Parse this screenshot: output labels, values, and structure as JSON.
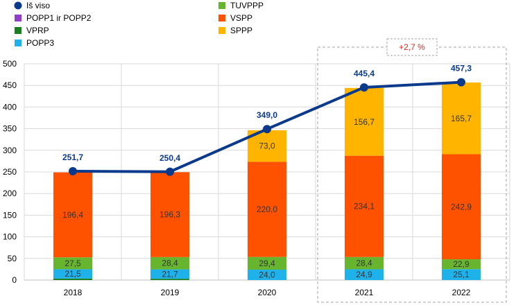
{
  "chart_data": {
    "type": "bar",
    "stacked": true,
    "categories": [
      "2018",
      "2019",
      "2020",
      "2021",
      "2022"
    ],
    "ylim": [
      0,
      500
    ],
    "yticks": [
      0,
      50,
      100,
      150,
      200,
      250,
      300,
      350,
      400,
      450,
      500
    ],
    "grid": true,
    "legend_position": "top",
    "series": [
      {
        "name": "POPP1 ir POPP2",
        "color": "#8f3fc8",
        "values": [
          0,
          0,
          0,
          0,
          0
        ],
        "labels": [
          "",
          "",
          "",
          "",
          ""
        ]
      },
      {
        "name": "VPRP",
        "color": "#1a7f1e",
        "values": [
          3.5,
          3.0,
          0,
          0,
          0
        ],
        "labels": [
          "",
          "",
          "",
          "",
          ""
        ]
      },
      {
        "name": "POPP3",
        "color": "#1fb1ea",
        "values": [
          21.5,
          21.7,
          24.0,
          24.9,
          25.1
        ],
        "labels": [
          "21,5",
          "21,7",
          "24,0",
          "24,9",
          "25,1"
        ]
      },
      {
        "name": "TUVPPP",
        "color": "#67b52e",
        "values": [
          27.5,
          28.4,
          29.4,
          28.4,
          22.9
        ],
        "labels": [
          "27,5",
          "28,4",
          "29,4",
          "28,4",
          "22,9"
        ]
      },
      {
        "name": "VSPP",
        "color": "#ff5200",
        "values": [
          196.4,
          196.3,
          220.0,
          234.1,
          242.9
        ],
        "labels": [
          "196,4",
          "196,3",
          "220,0",
          "234,1",
          "242,9"
        ]
      },
      {
        "name": "SPPP",
        "color": "#ffb400",
        "values": [
          0,
          0,
          73.0,
          156.7,
          165.7
        ],
        "labels": [
          "",
          "",
          "73,0",
          "156,7",
          "165,7"
        ]
      }
    ],
    "line_series": {
      "name": "Iš viso",
      "color": "#0b3a8c",
      "values": [
        251.7,
        250.4,
        349.0,
        445.4,
        457.3
      ],
      "labels": [
        "251,7",
        "250,4",
        "349,0",
        "445,4",
        "457,3"
      ]
    },
    "annotation": {
      "text": "+2,7 %",
      "color": "#d6281e",
      "categories": [
        "2021",
        "2022"
      ]
    },
    "legend": {
      "left": [
        {
          "name": "Iš viso",
          "marker": "circle",
          "color": "#0b3a8c"
        },
        {
          "name": "POPP1 ir POPP2",
          "marker": "square",
          "color": "#8f3fc8"
        },
        {
          "name": "VPRP",
          "marker": "square",
          "color": "#1a7f1e"
        },
        {
          "name": "POPP3",
          "marker": "square",
          "color": "#1fb1ea"
        }
      ],
      "right": [
        {
          "name": "TUVPPP",
          "marker": "square",
          "color": "#67b52e"
        },
        {
          "name": "VSPP",
          "marker": "square",
          "color": "#ff5200"
        },
        {
          "name": "SPPP",
          "marker": "square",
          "color": "#ffb400"
        }
      ]
    }
  }
}
